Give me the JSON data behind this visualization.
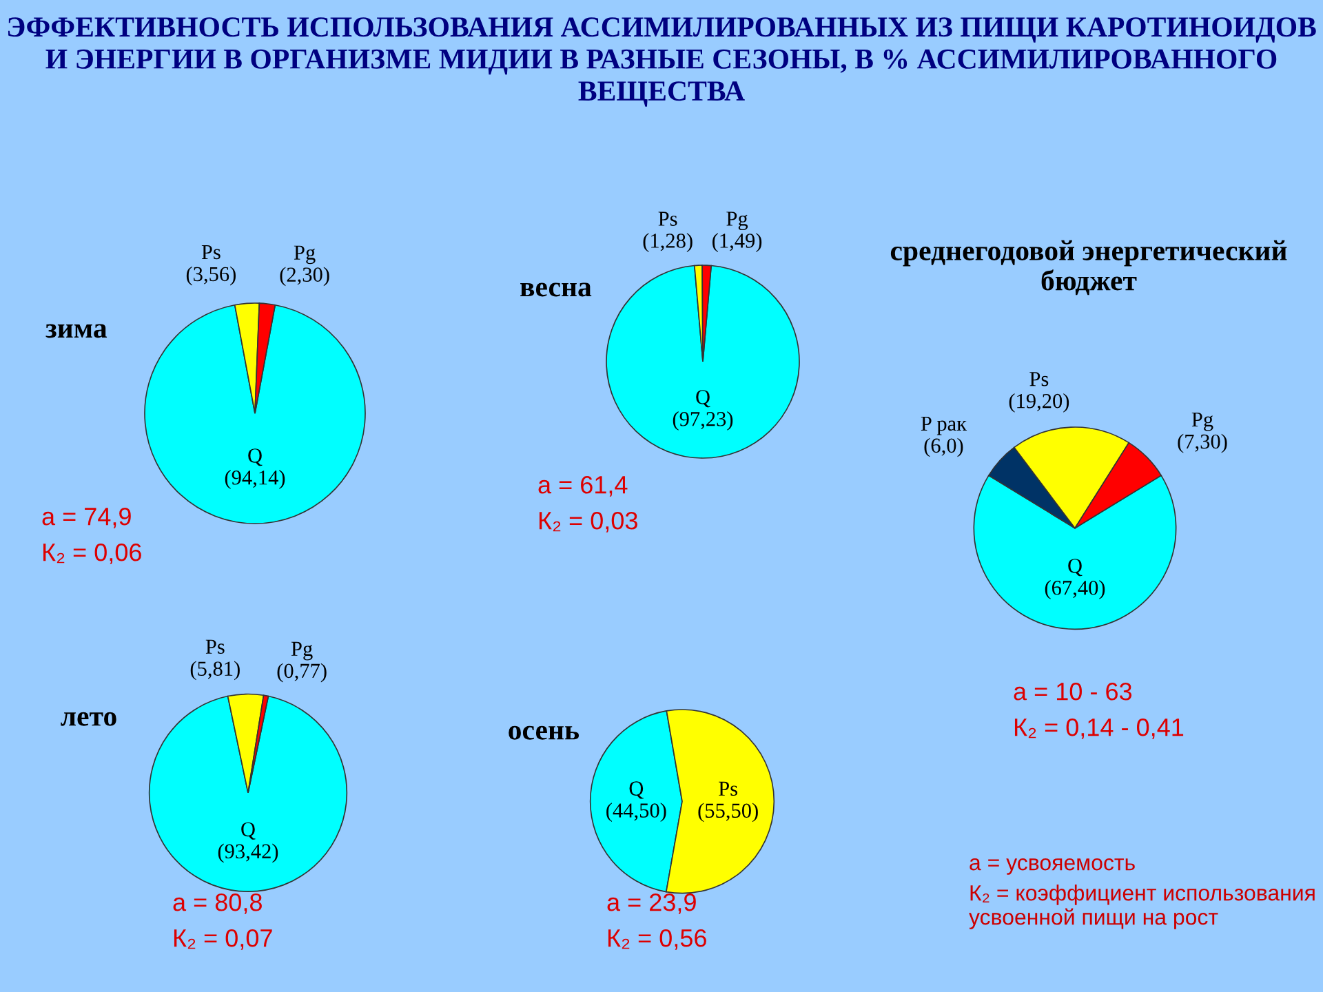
{
  "chart_data": [
    {
      "type": "other",
      "title": "ЭФФЕКТИВНОСТЬ ИСПОЛЬЗОВАНИЯ АССИМИЛИРОВАННЫХ ИЗ ПИЩИ КАРОТИНОИДОВ И ЭНЕРГИИ В ОРГАНИЗМЕ МИДИИ В РАЗНЫЕ СЕЗОНЫ, В % АССИМИЛИРОВАННОГО ВЕЩЕСТВА",
      "annotations": [
        "а = усвояемость",
        "К₂ = коэффициент использования усвоенной пищи на рост"
      ]
    },
    {
      "type": "pie",
      "title": "зима",
      "categories": [
        "Q",
        "Ps",
        "Pg"
      ],
      "values": [
        94.14,
        3.56,
        2.3
      ],
      "colors": [
        "#00ffff",
        "#ffff00",
        "#ff0000"
      ],
      "value_labels": [
        "(94,14)",
        "(3,56)",
        "(2,30)"
      ],
      "annotations": [
        "а = 74,9",
        "К₂ = 0,06"
      ]
    },
    {
      "type": "pie",
      "title": "весна",
      "categories": [
        "Q",
        "Ps",
        "Pg"
      ],
      "values": [
        97.23,
        1.28,
        1.49
      ],
      "colors": [
        "#00ffff",
        "#ffff00",
        "#ff0000"
      ],
      "value_labels": [
        "(97,23)",
        "(1,28)",
        "(1,49)"
      ],
      "annotations": [
        "а = 61,4",
        "К₂ = 0,03"
      ]
    },
    {
      "type": "pie",
      "title": "среднегодовой энергетический бюджет",
      "categories": [
        "Q",
        "P рак",
        "Ps",
        "Pg"
      ],
      "values": [
        67.4,
        6.0,
        19.2,
        7.3
      ],
      "colors": [
        "#00ffff",
        "#003366",
        "#ffff00",
        "#ff0000"
      ],
      "value_labels": [
        "(67,40)",
        "(6,0)",
        "(19,20)",
        "(7,30)"
      ],
      "annotations": [
        "а = 10 - 63",
        "К₂ = 0,14 - 0,41"
      ]
    },
    {
      "type": "pie",
      "title": "лето",
      "categories": [
        "Q",
        "Ps",
        "Pg"
      ],
      "values": [
        93.42,
        5.81,
        0.77
      ],
      "colors": [
        "#00ffff",
        "#ffff00",
        "#ff0000"
      ],
      "value_labels": [
        "(93,42)",
        "(5,81)",
        "(0,77)"
      ],
      "annotations": [
        "а = 80,8",
        "К₂ = 0,07"
      ]
    },
    {
      "type": "pie",
      "title": "осень",
      "categories": [
        "Q",
        "Ps"
      ],
      "values": [
        44.5,
        55.5
      ],
      "colors": [
        "#00ffff",
        "#ffff00"
      ],
      "value_labels": [
        "(44,50)",
        "(55,50)"
      ],
      "annotations": [
        "а = 23,9",
        "К₂ = 0,56"
      ]
    }
  ]
}
